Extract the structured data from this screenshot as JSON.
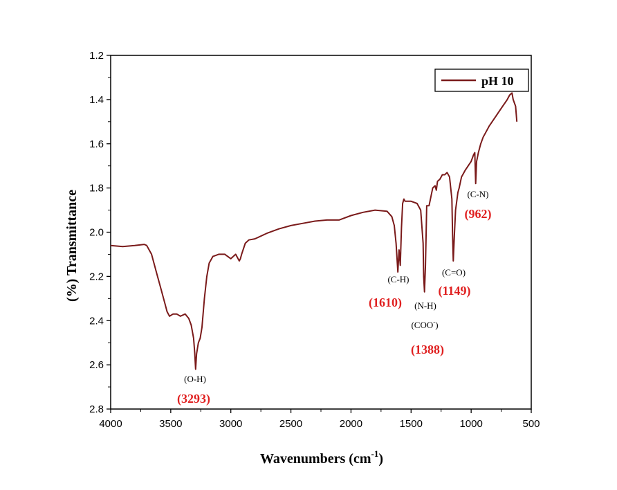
{
  "chart_data": {
    "type": "line",
    "title": "",
    "xlabel": "Wavenumbers (cm",
    "xlabel_sup": "-1",
    "xlabel_tail": ")",
    "ylabel": "(%) Transmittance",
    "xlim": [
      4000,
      500
    ],
    "ylim": [
      2.8,
      1.2
    ],
    "x_ticks": [
      "4000",
      "3500",
      "3000",
      "2500",
      "2000",
      "1500",
      "1000",
      "500"
    ],
    "y_ticks": [
      "1.2",
      "1.4",
      "1.6",
      "1.8",
      "2.0",
      "2.2",
      "2.4",
      "2.6",
      "2.8"
    ],
    "grid": false,
    "legend_position": "top-right",
    "series": [
      {
        "name": "pH 10",
        "color": "#7a1a1a",
        "x": [
          4000,
          3900,
          3800,
          3720,
          3700,
          3660,
          3620,
          3580,
          3550,
          3530,
          3510,
          3480,
          3450,
          3420,
          3380,
          3350,
          3330,
          3310,
          3300,
          3293,
          3285,
          3270,
          3255,
          3240,
          3220,
          3200,
          3180,
          3150,
          3100,
          3050,
          3000,
          2960,
          2930,
          2920,
          2910,
          2880,
          2850,
          2800,
          2700,
          2600,
          2500,
          2400,
          2300,
          2200,
          2100,
          2000,
          1900,
          1800,
          1700,
          1660,
          1640,
          1625,
          1610,
          1600,
          1590,
          1580,
          1570,
          1560,
          1550,
          1500,
          1450,
          1420,
          1400,
          1395,
          1388,
          1380,
          1370,
          1350,
          1320,
          1300,
          1290,
          1280,
          1260,
          1240,
          1220,
          1200,
          1180,
          1160,
          1155,
          1149,
          1140,
          1130,
          1110,
          1100,
          1080,
          1050,
          1000,
          980,
          970,
          962,
          955,
          940,
          920,
          900,
          880,
          850,
          800,
          750,
          700,
          680,
          660,
          650,
          630,
          620
        ],
        "y": [
          2.06,
          2.065,
          2.06,
          2.055,
          2.06,
          2.1,
          2.18,
          2.26,
          2.32,
          2.36,
          2.38,
          2.37,
          2.37,
          2.38,
          2.37,
          2.39,
          2.42,
          2.48,
          2.55,
          2.62,
          2.55,
          2.5,
          2.48,
          2.43,
          2.3,
          2.2,
          2.14,
          2.11,
          2.1,
          2.1,
          2.12,
          2.1,
          2.13,
          2.12,
          2.1,
          2.05,
          2.035,
          2.03,
          2.005,
          1.985,
          1.97,
          1.96,
          1.95,
          1.945,
          1.945,
          1.925,
          1.91,
          1.9,
          1.905,
          1.93,
          1.97,
          2.05,
          2.18,
          2.08,
          2.15,
          1.98,
          1.87,
          1.85,
          1.86,
          1.86,
          1.87,
          1.9,
          2.05,
          2.2,
          2.27,
          2.15,
          1.88,
          1.88,
          1.8,
          1.79,
          1.81,
          1.77,
          1.76,
          1.74,
          1.74,
          1.73,
          1.75,
          1.85,
          2.0,
          2.13,
          2.02,
          1.9,
          1.82,
          1.8,
          1.75,
          1.72,
          1.68,
          1.65,
          1.64,
          1.78,
          1.68,
          1.64,
          1.6,
          1.57,
          1.55,
          1.52,
          1.48,
          1.44,
          1.4,
          1.38,
          1.37,
          1.4,
          1.43,
          1.5
        ]
      }
    ],
    "annotations": [
      {
        "name": "oh",
        "label": "(O-H)",
        "value": "(3293)"
      },
      {
        "name": "ch",
        "label": "(C-H)",
        "value": "(1610)"
      },
      {
        "name": "nh",
        "label": "(N-H)",
        "label2": "(COO",
        "label2_sup": "-",
        "label2_tail": ")",
        "value": "(1388)"
      },
      {
        "name": "co",
        "label": "(C=O)",
        "value": "(1149)"
      },
      {
        "name": "cn",
        "label": "(C-N)",
        "value": "(962)"
      }
    ]
  }
}
